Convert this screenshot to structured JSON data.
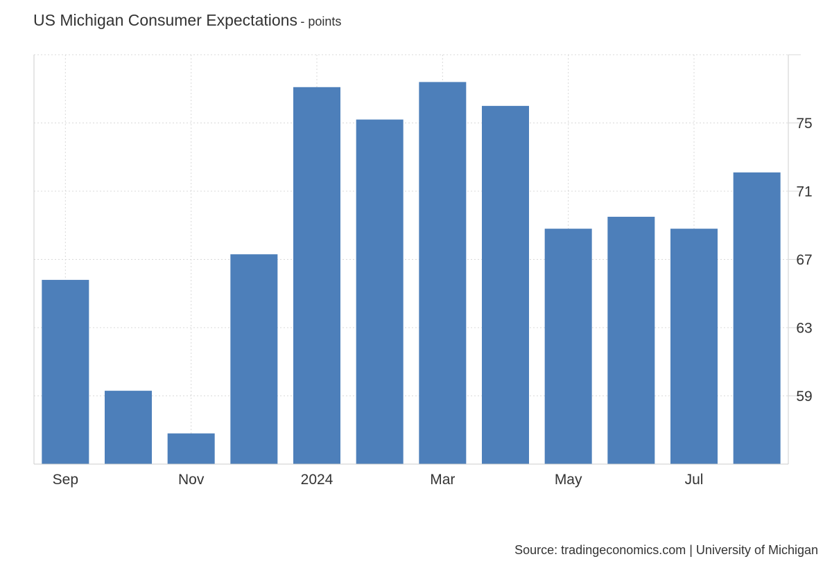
{
  "chart_data": {
    "type": "bar",
    "title": "US Michigan Consumer Expectations",
    "subtitle": "- points",
    "categories": [
      "2023-09",
      "2023-10",
      "2023-11",
      "2023-12",
      "2024-01",
      "2024-02",
      "2024-03",
      "2024-04",
      "2024-05",
      "2024-06",
      "2024-07",
      "2024-08"
    ],
    "values": [
      65.8,
      59.3,
      56.8,
      67.3,
      77.1,
      75.2,
      77.4,
      76.0,
      68.8,
      69.5,
      68.8,
      72.1
    ],
    "x_tick_labels": [
      {
        "index": 0,
        "label": "Sep"
      },
      {
        "index": 2,
        "label": "Nov"
      },
      {
        "index": 4,
        "label": "2024"
      },
      {
        "index": 6,
        "label": "Mar"
      },
      {
        "index": 8,
        "label": "May"
      },
      {
        "index": 10,
        "label": "Jul"
      }
    ],
    "y_ticks": [
      59,
      63,
      67,
      71,
      75
    ],
    "ylim": [
      55.0,
      79.0
    ],
    "y_axis_position": "right",
    "grid": true,
    "bar_color": "#4d7fba",
    "xlabel": "",
    "ylabel": ""
  },
  "source": "Source: tradingeconomics.com | University of Michigan"
}
